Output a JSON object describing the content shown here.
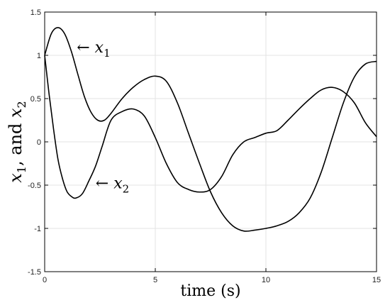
{
  "chart_data": {
    "type": "line",
    "title": "",
    "xlabel": "time (s)",
    "ylabel": "x",
    "ylabel_parts": {
      "sym1": "x",
      "sub1": "1",
      "mid": ", and ",
      "sym2": "x",
      "sub2": "2"
    },
    "xlim": [
      0,
      15
    ],
    "ylim": [
      -1.5,
      1.5
    ],
    "grid": true,
    "x_ticks": [
      0,
      5,
      10,
      15
    ],
    "y_ticks": [
      -1.5,
      -1,
      -0.5,
      0,
      0.5,
      1,
      1.5
    ],
    "x_tick_labels": [
      "0",
      "5",
      "10",
      "15"
    ],
    "y_tick_labels": [
      "-1.5",
      "-1",
      "-0.5",
      "0",
      "0.5",
      "1",
      "1.5"
    ],
    "series": [
      {
        "name": "x1",
        "color": "#000000",
        "x": [
          0,
          0.3,
          0.6,
          0.9,
          1.2,
          1.5,
          1.8,
          2.1,
          2.4,
          2.7,
          3.0,
          3.5,
          4.0,
          4.5,
          5.0,
          5.5,
          6.0,
          6.5,
          7.0,
          7.5,
          8.0,
          8.5,
          9.0,
          9.5,
          10.0,
          10.5,
          11.0,
          11.5,
          12.0,
          12.5,
          13.0,
          13.5,
          14.0,
          14.5,
          15.0
        ],
        "y": [
          1.0,
          1.25,
          1.32,
          1.25,
          1.05,
          0.78,
          0.52,
          0.34,
          0.25,
          0.25,
          0.33,
          0.5,
          0.63,
          0.72,
          0.76,
          0.7,
          0.45,
          0.1,
          -0.25,
          -0.58,
          -0.82,
          -0.97,
          -1.03,
          -1.02,
          -1.0,
          -0.97,
          -0.92,
          -0.82,
          -0.65,
          -0.35,
          0.05,
          0.45,
          0.75,
          0.9,
          0.93
        ]
      },
      {
        "name": "x2",
        "color": "#000000",
        "x": [
          0,
          0.2,
          0.4,
          0.6,
          0.8,
          1.0,
          1.2,
          1.4,
          1.7,
          2.0,
          2.3,
          2.6,
          3.0,
          3.5,
          4.0,
          4.5,
          5.0,
          5.5,
          6.0,
          6.5,
          7.0,
          7.5,
          8.0,
          8.5,
          9.0,
          9.5,
          10.0,
          10.5,
          11.0,
          11.5,
          12.0,
          12.5,
          13.0,
          13.5,
          14.0,
          14.5,
          15.0
        ],
        "y": [
          1.0,
          0.55,
          0.15,
          -0.2,
          -0.42,
          -0.57,
          -0.63,
          -0.65,
          -0.6,
          -0.45,
          -0.28,
          -0.05,
          0.25,
          0.35,
          0.38,
          0.3,
          0.05,
          -0.25,
          -0.47,
          -0.55,
          -0.58,
          -0.55,
          -0.4,
          -0.15,
          0.0,
          0.05,
          0.1,
          0.13,
          0.25,
          0.38,
          0.5,
          0.6,
          0.63,
          0.58,
          0.45,
          0.22,
          0.06
        ]
      }
    ],
    "annotations": [
      {
        "sym": "x",
        "sub": "1",
        "arrow": "←",
        "at_x": 1.45,
        "at_y": 1.1
      },
      {
        "sym": "x",
        "sub": "2",
        "arrow": "←",
        "at_x": 2.3,
        "at_y": -0.47
      }
    ]
  }
}
